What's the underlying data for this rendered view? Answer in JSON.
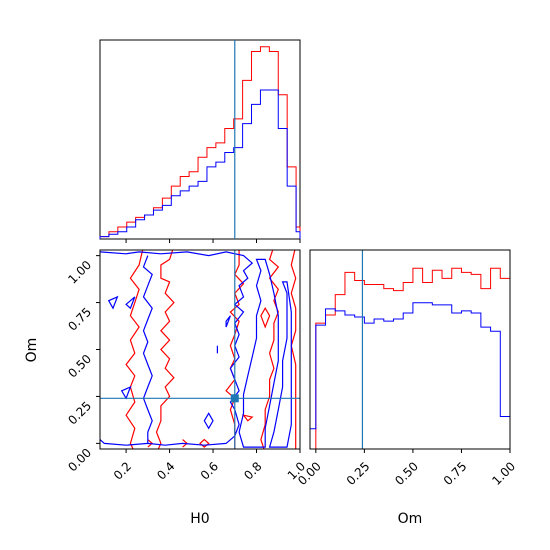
{
  "chart_data": {
    "type": "corner",
    "parameters": [
      "H0",
      "Om"
    ],
    "truths": {
      "H0": 0.7,
      "Om": 0.24
    },
    "truth_color": "#1f77b4",
    "series": [
      {
        "color": "#ff0000"
      },
      {
        "color": "#0000ff"
      }
    ],
    "hist_H0": {
      "type": "step",
      "range": [
        0.08,
        1.0
      ],
      "bin_edges": [
        0.08,
        0.121,
        0.162,
        0.203,
        0.244,
        0.285,
        0.326,
        0.367,
        0.408,
        0.449,
        0.49,
        0.531,
        0.572,
        0.613,
        0.654,
        0.695,
        0.736,
        0.777,
        0.818,
        0.859,
        0.9,
        0.941,
        0.982,
        1.0
      ],
      "red": [
        0.5,
        1.5,
        2.5,
        3.5,
        4.5,
        5,
        6.5,
        8.5,
        11,
        13,
        14,
        17,
        19,
        20,
        23,
        25,
        33,
        39,
        40,
        39,
        30,
        15,
        2.5
      ],
      "blue": [
        0.5,
        1,
        1.5,
        2.5,
        4,
        5,
        6,
        7,
        9,
        10,
        11,
        12,
        15,
        16,
        18,
        19,
        24,
        28,
        31,
        31,
        23,
        11,
        1.5
      ]
    },
    "contours_H0_Om": {
      "type": "contour",
      "xlim": [
        0.08,
        1.0
      ],
      "ylim": [
        -0.03,
        1.03
      ],
      "xticks": [
        "0.2",
        "0.4",
        "0.6",
        "0.8",
        "1.0"
      ],
      "yticks": [
        "0.00",
        "0.25",
        "0.50",
        "0.75",
        "1.00"
      ]
    },
    "hist_Om": {
      "type": "step",
      "range": [
        -0.03,
        1.0
      ],
      "bin_edges": [
        -0.03,
        0.0,
        0.05,
        0.1,
        0.15,
        0.2,
        0.25,
        0.3,
        0.35,
        0.4,
        0.45,
        0.5,
        0.55,
        0.6,
        0.65,
        0.7,
        0.75,
        0.8,
        0.85,
        0.9,
        0.95,
        1.0
      ],
      "red": [
        0,
        0.62,
        0.66,
        0.76,
        0.87,
        0.83,
        0.81,
        0.81,
        0.79,
        0.78,
        0.82,
        0.89,
        0.82,
        0.88,
        0.84,
        0.89,
        0.87,
        0.86,
        0.79,
        0.89,
        0.84
      ],
      "blue": [
        0.1,
        0.61,
        0.69,
        0.68,
        0.66,
        0.65,
        0.62,
        0.64,
        0.63,
        0.64,
        0.67,
        0.72,
        0.72,
        0.71,
        0.71,
        0.67,
        0.68,
        0.67,
        0.6,
        0.58,
        0.16
      ],
      "ymax": 0.98,
      "xticks": [
        "0.00",
        "0.25",
        "0.50",
        "0.75",
        "1.00"
      ]
    },
    "xlabel_H0": "H0",
    "ylabel_Om": "Om",
    "xlabel_Om": "Om"
  }
}
